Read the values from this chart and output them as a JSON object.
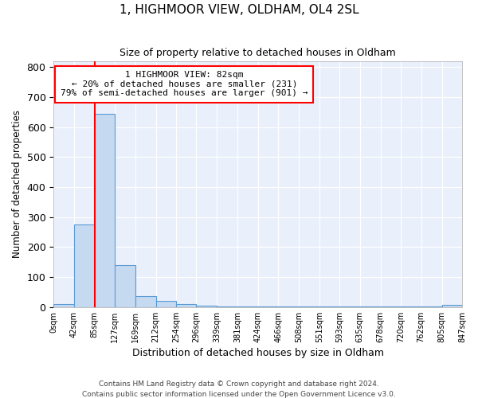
{
  "title": "1, HIGHMOOR VIEW, OLDHAM, OL4 2SL",
  "subtitle": "Size of property relative to detached houses in Oldham",
  "xlabel": "Distribution of detached houses by size in Oldham",
  "ylabel": "Number of detached properties",
  "bin_edges": [
    0,
    42,
    85,
    127,
    169,
    212,
    254,
    296,
    339,
    381,
    424,
    466,
    508,
    551,
    593,
    635,
    678,
    720,
    762,
    805,
    847
  ],
  "bar_heights": [
    10,
    275,
    645,
    140,
    38,
    20,
    10,
    5,
    3,
    2,
    2,
    1,
    1,
    1,
    1,
    1,
    1,
    1,
    1,
    8
  ],
  "bar_color": "#c5d9f0",
  "bar_edge_color": "#5b9bd5",
  "red_line_x": 85,
  "annotation_title": "1 HIGHMOOR VIEW: 82sqm",
  "annotation_line1": "← 20% of detached houses are smaller (231)",
  "annotation_line2": "79% of semi-detached houses are larger (901) →",
  "footer1": "Contains HM Land Registry data © Crown copyright and database right 2024.",
  "footer2": "Contains public sector information licensed under the Open Government Licence v3.0.",
  "ylim": [
    0,
    820
  ],
  "yticks": [
    0,
    100,
    200,
    300,
    400,
    500,
    600,
    700,
    800
  ],
  "background_color": "#ffffff",
  "plot_bg_color": "#eaf0fb",
  "grid_color": "#ffffff"
}
